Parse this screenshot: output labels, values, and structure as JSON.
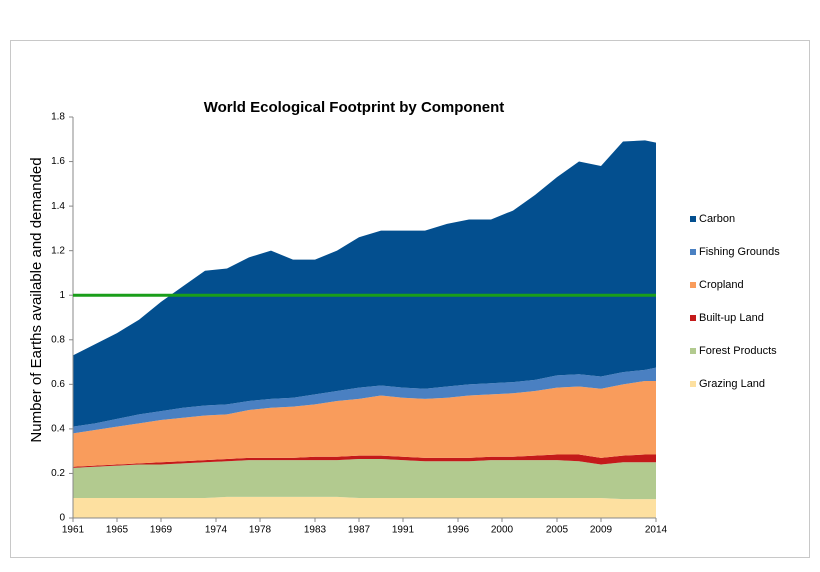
{
  "chart_data": {
    "type": "stacked-area",
    "title": "World Ecological Footprint by Component",
    "y_label": "Number of Earths available and demanded",
    "x": [
      1961,
      1963,
      1965,
      1967,
      1969,
      1971,
      1973,
      1975,
      1977,
      1979,
      1981,
      1983,
      1985,
      1987,
      1989,
      1991,
      1993,
      1995,
      1997,
      1999,
      2001,
      2003,
      2005,
      2007,
      2009,
      2011,
      2013,
      2014
    ],
    "xlim": [
      1961,
      2014
    ],
    "xticks": [
      1961,
      1965,
      1969,
      1974,
      1978,
      1983,
      1987,
      1991,
      1996,
      2000,
      2005,
      2009,
      2014
    ],
    "ylim": [
      0,
      1.8
    ],
    "yticks": [
      0,
      0.2,
      0.4,
      0.6,
      0.8,
      1,
      1.2,
      1.4,
      1.6,
      1.8
    ],
    "reference_line": {
      "value": 1,
      "color": "#1a9e1a"
    },
    "legend": "right",
    "series": [
      {
        "name": "Carbon",
        "color": "#034f8f",
        "values": [
          0.32,
          0.355,
          0.385,
          0.425,
          0.49,
          0.545,
          0.605,
          0.61,
          0.645,
          0.665,
          0.62,
          0.605,
          0.63,
          0.675,
          0.695,
          0.705,
          0.71,
          0.73,
          0.74,
          0.735,
          0.77,
          0.83,
          0.89,
          0.955,
          0.945,
          1.035,
          1.03,
          1.01
        ]
      },
      {
        "name": "Fishing Grounds",
        "color": "#4a80c2",
        "values": [
          0.03,
          0.03,
          0.035,
          0.04,
          0.04,
          0.045,
          0.045,
          0.045,
          0.04,
          0.04,
          0.04,
          0.045,
          0.045,
          0.05,
          0.045,
          0.045,
          0.045,
          0.05,
          0.05,
          0.05,
          0.05,
          0.05,
          0.055,
          0.055,
          0.055,
          0.055,
          0.05,
          0.06
        ]
      },
      {
        "name": "Cropland",
        "color": "#f99c5c",
        "values": [
          0.15,
          0.16,
          0.17,
          0.18,
          0.19,
          0.195,
          0.2,
          0.2,
          0.215,
          0.225,
          0.23,
          0.235,
          0.25,
          0.255,
          0.27,
          0.265,
          0.265,
          0.27,
          0.28,
          0.28,
          0.285,
          0.29,
          0.3,
          0.305,
          0.31,
          0.32,
          0.33,
          0.33
        ]
      },
      {
        "name": "Built-up Land",
        "color": "#c41a1a",
        "values": [
          0.005,
          0.005,
          0.005,
          0.005,
          0.01,
          0.01,
          0.01,
          0.01,
          0.01,
          0.01,
          0.01,
          0.015,
          0.015,
          0.015,
          0.015,
          0.015,
          0.015,
          0.015,
          0.015,
          0.015,
          0.015,
          0.02,
          0.025,
          0.03,
          0.03,
          0.03,
          0.035,
          0.035
        ]
      },
      {
        "name": "Forest Products",
        "color": "#b2ca8f",
        "values": [
          0.135,
          0.14,
          0.145,
          0.15,
          0.15,
          0.155,
          0.16,
          0.16,
          0.165,
          0.165,
          0.165,
          0.165,
          0.165,
          0.175,
          0.175,
          0.17,
          0.165,
          0.165,
          0.165,
          0.17,
          0.17,
          0.17,
          0.17,
          0.165,
          0.15,
          0.165,
          0.165,
          0.165
        ]
      },
      {
        "name": "Grazing Land",
        "color": "#fde0a0",
        "values": [
          0.09,
          0.09,
          0.09,
          0.09,
          0.09,
          0.09,
          0.09,
          0.095,
          0.095,
          0.095,
          0.095,
          0.095,
          0.095,
          0.09,
          0.09,
          0.09,
          0.09,
          0.09,
          0.09,
          0.09,
          0.09,
          0.09,
          0.09,
          0.09,
          0.09,
          0.085,
          0.085,
          0.085
        ]
      }
    ]
  }
}
